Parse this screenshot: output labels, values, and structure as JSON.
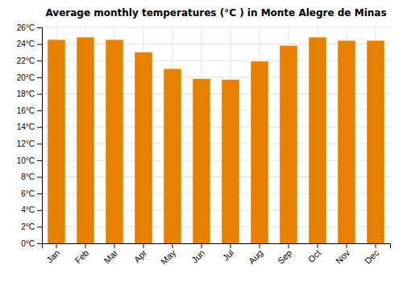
{
  "chart_data": {
    "type": "bar",
    "title": "Average monthly temperatures (°C ) in Monte Alegre de Minas",
    "categories": [
      "Jan",
      "Feb",
      "Mar",
      "Apr",
      "May",
      "Jun",
      "Jul",
      "Aug",
      "Sep",
      "Oct",
      "Nov",
      "Dec"
    ],
    "values": [
      24.5,
      24.8,
      24.5,
      23.0,
      21.0,
      19.8,
      19.7,
      21.9,
      23.8,
      24.8,
      24.4,
      24.4
    ],
    "color": "#E88000",
    "ylim": [
      0,
      26
    ],
    "yticks": [
      {
        "value": 0,
        "label": "0°C"
      },
      {
        "value": 2,
        "label": "2°C"
      },
      {
        "value": 4,
        "label": "4°C"
      },
      {
        "value": 6,
        "label": "6°C"
      },
      {
        "value": 8,
        "label": "8°C"
      },
      {
        "value": 10,
        "label": "10°C"
      },
      {
        "value": 12,
        "label": "12°C"
      },
      {
        "value": 14,
        "label": "14°C"
      },
      {
        "value": 16,
        "label": "16°C"
      },
      {
        "value": 18,
        "label": "18°C"
      },
      {
        "value": 20,
        "label": "20°C"
      },
      {
        "value": 22,
        "label": "22°C"
      },
      {
        "value": 24,
        "label": "24°C"
      },
      {
        "value": 26,
        "label": "26°C"
      }
    ],
    "grid": true
  }
}
